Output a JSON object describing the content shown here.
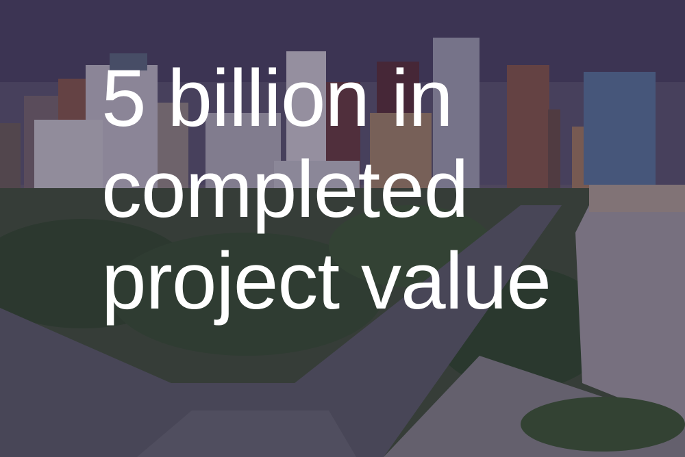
{
  "headline": {
    "line1": "5 billion in",
    "line2": "completed",
    "line3": "project value"
  },
  "background": {
    "description_icon": "city-skyline-photo",
    "overlay_color": "#2e2440"
  }
}
